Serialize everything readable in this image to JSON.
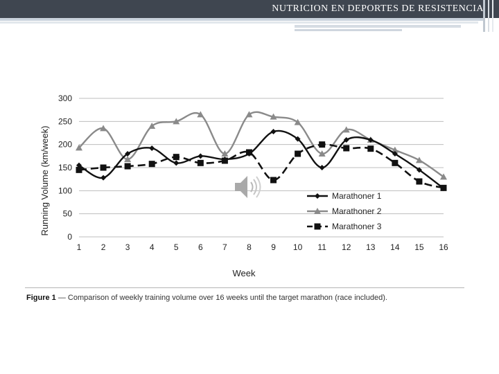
{
  "header": {
    "title": "NUTRICION EN DEPORTES DE RESISTENCIA"
  },
  "colors": {
    "header_bg": "#3f4650",
    "series1": "#111111",
    "series2": "#8a8a8a",
    "series3": "#111111"
  },
  "icons": {
    "speaker": "speaker-icon"
  },
  "chart_data": {
    "type": "line",
    "title": "",
    "xlabel": "Week",
    "ylabel": "Running Volume (km/week)",
    "x": [
      1,
      2,
      3,
      4,
      5,
      6,
      7,
      8,
      9,
      10,
      11,
      12,
      13,
      14,
      15,
      16
    ],
    "xlim": [
      1,
      16
    ],
    "ylim": [
      0,
      300
    ],
    "yticks": [
      0,
      50,
      100,
      150,
      200,
      250,
      300
    ],
    "grid": "horizontal",
    "legend_position": "bottom-right",
    "series": [
      {
        "name": "Marathoner 1",
        "marker": "diamond",
        "dash": "solid",
        "values": [
          155,
          128,
          180,
          192,
          160,
          175,
          168,
          180,
          228,
          212,
          150,
          210,
          210,
          180,
          145,
          105
        ]
      },
      {
        "name": "Marathoner 2",
        "marker": "triangle",
        "dash": "solid",
        "values": [
          193,
          235,
          168,
          240,
          250,
          265,
          180,
          265,
          260,
          248,
          180,
          232,
          210,
          188,
          166,
          130
        ]
      },
      {
        "name": "Marathoner 3",
        "marker": "square",
        "dash": "dashed",
        "values": [
          145,
          150,
          153,
          158,
          173,
          160,
          165,
          183,
          123,
          180,
          200,
          192,
          191,
          160,
          120,
          106
        ]
      }
    ]
  },
  "caption": {
    "label": "Figure 1",
    "text": " — Comparison of weekly training volume over 16 weeks until the target marathon (race included)."
  }
}
